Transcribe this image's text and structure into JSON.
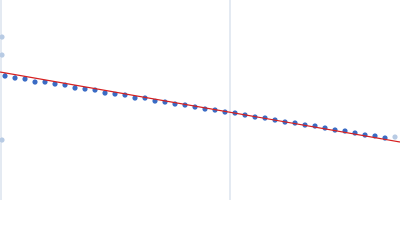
{
  "chart_data": {
    "type": "scatter",
    "xlim": [
      0,
      400
    ],
    "ylim": [
      0,
      200
    ],
    "series": [
      {
        "color": "#3a6bc4",
        "x": [
          5,
          15,
          25,
          35,
          45,
          55,
          65,
          75,
          85,
          95,
          105,
          115,
          125,
          135,
          145,
          155,
          165,
          175,
          185,
          195,
          205,
          215,
          225,
          235,
          245,
          255,
          265,
          275,
          285,
          295,
          305,
          315,
          325,
          335,
          345,
          355,
          365,
          375,
          385
        ],
        "values": [
          124,
          122,
          121,
          118,
          118,
          116,
          115,
          112,
          111,
          110,
          107,
          106,
          105,
          102,
          102,
          99,
          98,
          96,
          95,
          93,
          91,
          90,
          88,
          87,
          85,
          83,
          82,
          80,
          78,
          77,
          75,
          74,
          72,
          70,
          69,
          67,
          65,
          64,
          62
        ]
      },
      {
        "color": "#b8cbe4",
        "x": [
          2,
          2,
          2,
          395
        ],
        "values": [
          163,
          145,
          60,
          63
        ]
      }
    ],
    "fit": {
      "color": "#d62020",
      "x": [
        0,
        400
      ],
      "values": [
        128,
        58
      ]
    }
  }
}
